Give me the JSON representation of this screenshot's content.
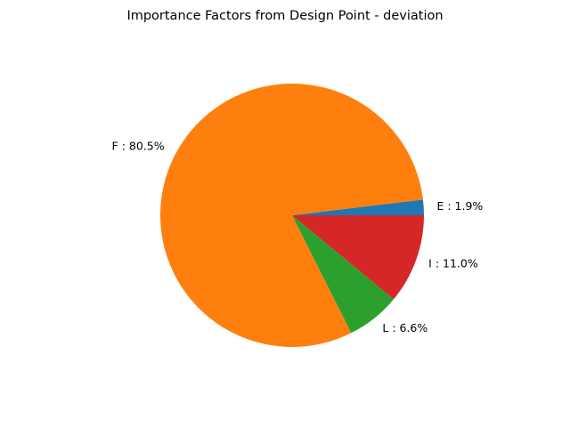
{
  "chart_data": {
    "type": "pie",
    "title": "Importance Factors from Design Point - deviation",
    "slices": [
      {
        "label": "E : 1.9%",
        "value": 1.9,
        "color": "#1f77b4"
      },
      {
        "label": "F : 80.5%",
        "value": 80.5,
        "color": "#ff7f0e"
      },
      {
        "label": "L : 6.6%",
        "value": 6.6,
        "color": "#2ca02c"
      },
      {
        "label": "I : 11.0%",
        "value": 11.0,
        "color": "#d62728"
      }
    ],
    "start_angle_deg": 0,
    "direction": "counterclockwise",
    "legend": "none"
  }
}
